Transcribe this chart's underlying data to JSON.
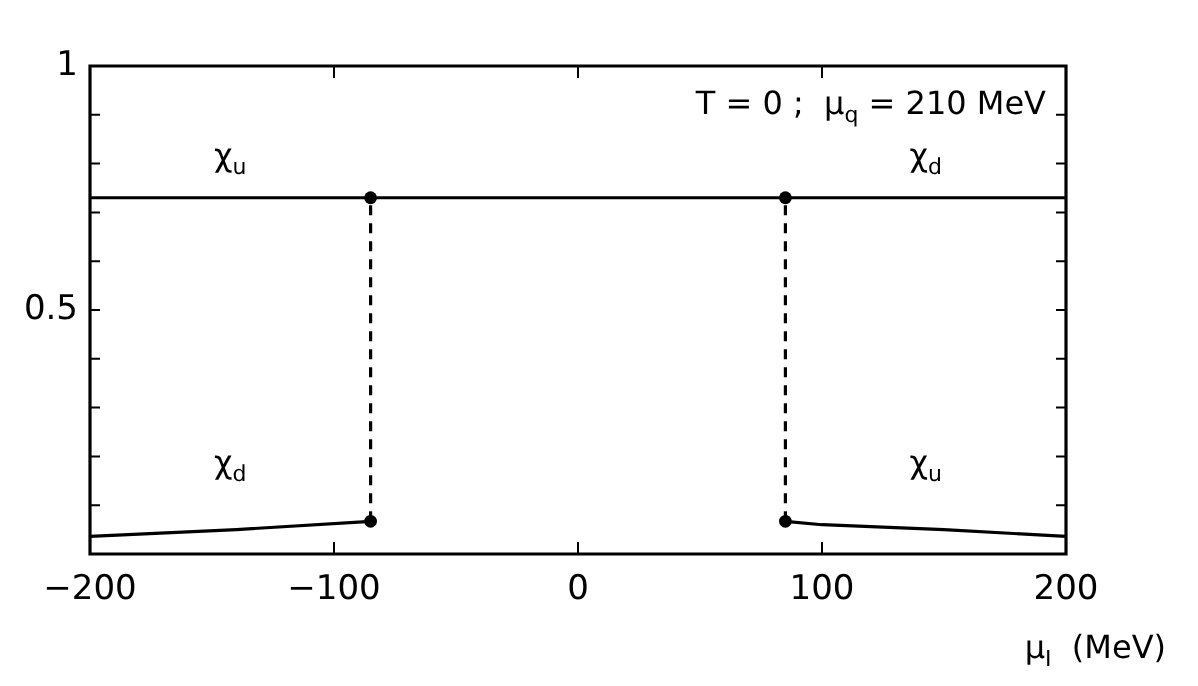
{
  "chart_data": {
    "type": "line",
    "xlabel": "μ$_{I}$  (MeV)",
    "annotations": [
      "T = 0 ;  μ$_{q}$ = 210 MeV"
    ],
    "xlim": [
      -200,
      200
    ],
    "xticks": [
      -200,
      -100,
      0,
      100,
      200
    ],
    "ylim": [
      0,
      1
    ],
    "yticks": [
      {
        "value": 0,
        "label": null
      },
      {
        "value": 0.1,
        "label": null
      },
      {
        "value": 0.2,
        "label": null
      },
      {
        "value": 0.3,
        "label": null
      },
      {
        "value": 0.4,
        "label": null
      },
      0.5,
      {
        "value": 0.6,
        "label": null
      },
      {
        "value": 0.7,
        "label": null
      },
      {
        "value": 0.8,
        "label": null
      },
      {
        "value": 0.9,
        "label": null
      },
      1
    ],
    "series": [
      {
        "name": "χ$_{u}$",
        "color": "#000000",
        "x": [
          -200,
          -85
        ],
        "values": [
          0.73,
          0.73
        ]
      },
      {
        "color": "#000000",
        "x": [
          -85,
          85
        ],
        "values": [
          0.73,
          0.73
        ]
      },
      {
        "name": "χ$_{d}$",
        "color": "#000000",
        "x": [
          85,
          200
        ],
        "values": [
          0.73,
          0.73
        ]
      },
      {
        "name": "χ$_{d}$",
        "color": "#000000",
        "x": [
          -200,
          -140,
          -85
        ],
        "values": [
          0.036,
          0.05,
          0.067
        ]
      },
      {
        "name": "χ$_{u}$",
        "color": "#000000",
        "x": [
          85,
          100,
          150,
          200
        ],
        "values": [
          0.067,
          0.06,
          0.05,
          0.036
        ]
      },
      {
        "color": "#000000",
        "x": [
          -85,
          -85
        ],
        "values": [
          0.067,
          0.73
        ],
        "line_style": "dashed"
      },
      {
        "color": "#000000",
        "x": [
          85,
          85
        ],
        "values": [
          0.067,
          0.73
        ],
        "line_style": "dashed"
      },
      {
        "type": "scatter",
        "color": "#000000",
        "x": [
          -85,
          -85,
          85,
          85
        ],
        "values": [
          0.73,
          0.067,
          0.73,
          0.067
        ],
        "marker": "circle"
      }
    ]
  }
}
